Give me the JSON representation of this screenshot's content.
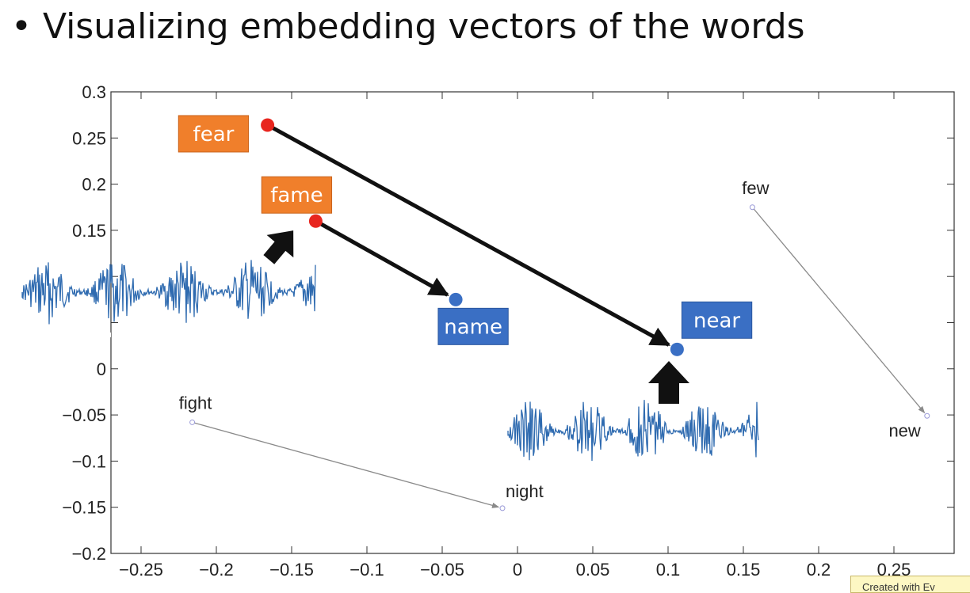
{
  "slide": {
    "title": "• Visualizing embedding vectors of the words",
    "watermark": "Created with Ev"
  },
  "chart_data": {
    "type": "scatter",
    "title": "",
    "xlabel": "",
    "ylabel": "",
    "xlim": [
      -0.27,
      0.29
    ],
    "ylim": [
      -0.2,
      0.3
    ],
    "grid": false,
    "x_ticks": [
      -0.25,
      -0.2,
      -0.15,
      -0.1,
      -0.05,
      0,
      0.05,
      0.1,
      0.15,
      0.2,
      0.25
    ],
    "x_tick_labels": [
      "−0.25",
      "−0.2",
      "−0.15",
      "−0.1",
      "−0.05",
      "0",
      "0.05",
      "0.1",
      "0.15",
      "0.2",
      "0.25"
    ],
    "y_ticks": [
      0.3,
      0.25,
      0.2,
      0.15,
      0.1,
      0.05,
      0,
      -0.05,
      -0.1,
      -0.15,
      -0.2
    ],
    "y_tick_labels": [
      "0.3",
      "0.25",
      "0.2",
      "0.15",
      "",
      "",
      "0",
      "−0.05",
      "−0.1",
      "−0.15",
      "−0.2"
    ],
    "points": [
      {
        "word": "fear",
        "x": -0.166,
        "y": 0.264,
        "color": "#e8251e",
        "highlight": "orange",
        "label_pos": "left"
      },
      {
        "word": "fame",
        "x": -0.134,
        "y": 0.16,
        "color": "#e8251e",
        "highlight": "orange",
        "label_pos": "top"
      },
      {
        "word": "name",
        "x": -0.041,
        "y": 0.075,
        "color": "#3a6fc4",
        "highlight": "blue",
        "label_pos": "bottom"
      },
      {
        "word": "near",
        "x": 0.106,
        "y": 0.021,
        "color": "#3a6fc4",
        "highlight": "blue",
        "label_pos": "top-right"
      },
      {
        "word": "few",
        "x": 0.156,
        "y": 0.175,
        "color": "#9a9ad8",
        "highlight": "none",
        "label_pos": "top"
      },
      {
        "word": "new",
        "x": 0.272,
        "y": -0.051,
        "color": "#9a9ad8",
        "highlight": "none",
        "label_pos": "bottom-left"
      },
      {
        "word": "fight",
        "x": -0.216,
        "y": -0.058,
        "color": "#9a9ad8",
        "highlight": "none",
        "label_pos": "top"
      },
      {
        "word": "night",
        "x": -0.01,
        "y": -0.151,
        "color": "#9a9ad8",
        "highlight": "none",
        "label_pos": "top-right"
      }
    ],
    "arrows": [
      {
        "from": "fear",
        "to": "near",
        "style": "bold"
      },
      {
        "from": "fame",
        "to": "name",
        "style": "bold"
      },
      {
        "from": "few",
        "to": "new",
        "style": "thin"
      },
      {
        "from": "fight",
        "to": "night",
        "style": "thin"
      }
    ],
    "colors": {
      "orange_box": "#f07f2b",
      "blue_box": "#3a6fc4",
      "waveform": "#2f6bb0",
      "thin_arrow": "#8a8a8a",
      "bold_arrow": "#111111"
    },
    "overlays": [
      {
        "kind": "waveform",
        "name": "waveform-left"
      },
      {
        "kind": "waveform",
        "name": "waveform-right"
      },
      {
        "kind": "pointer",
        "name": "pointer-arrow-fame",
        "direction": "up-right"
      },
      {
        "kind": "pointer",
        "name": "pointer-arrow-near",
        "direction": "up"
      }
    ]
  }
}
